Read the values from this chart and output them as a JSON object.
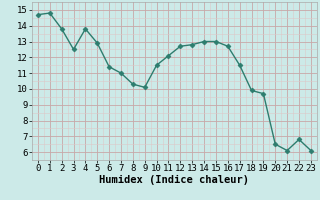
{
  "x": [
    0,
    1,
    2,
    3,
    4,
    5,
    6,
    7,
    8,
    9,
    10,
    11,
    12,
    13,
    14,
    15,
    16,
    17,
    18,
    19,
    20,
    21,
    22,
    23
  ],
  "y": [
    14.7,
    14.8,
    13.8,
    12.5,
    13.8,
    12.9,
    11.4,
    11.0,
    10.3,
    10.1,
    11.5,
    12.1,
    12.7,
    12.8,
    13.0,
    13.0,
    12.7,
    11.5,
    9.9,
    9.7,
    6.5,
    6.1,
    6.8,
    6.1
  ],
  "line_color": "#2d7d6e",
  "marker": "D",
  "marker_size": 2.5,
  "bg_color": "#cceae8",
  "grid_color_major": "#c8a8a8",
  "grid_color_minor": "#ddc8c8",
  "xlabel": "Humidex (Indice chaleur)",
  "xlim": [
    -0.5,
    23.5
  ],
  "ylim": [
    5.5,
    15.5
  ],
  "yticks": [
    6,
    7,
    8,
    9,
    10,
    11,
    12,
    13,
    14,
    15
  ],
  "xticks": [
    0,
    1,
    2,
    3,
    4,
    5,
    6,
    7,
    8,
    9,
    10,
    11,
    12,
    13,
    14,
    15,
    16,
    17,
    18,
    19,
    20,
    21,
    22,
    23
  ],
  "tick_fontsize": 6.5,
  "xlabel_fontsize": 7.5,
  "line_width": 1.0
}
